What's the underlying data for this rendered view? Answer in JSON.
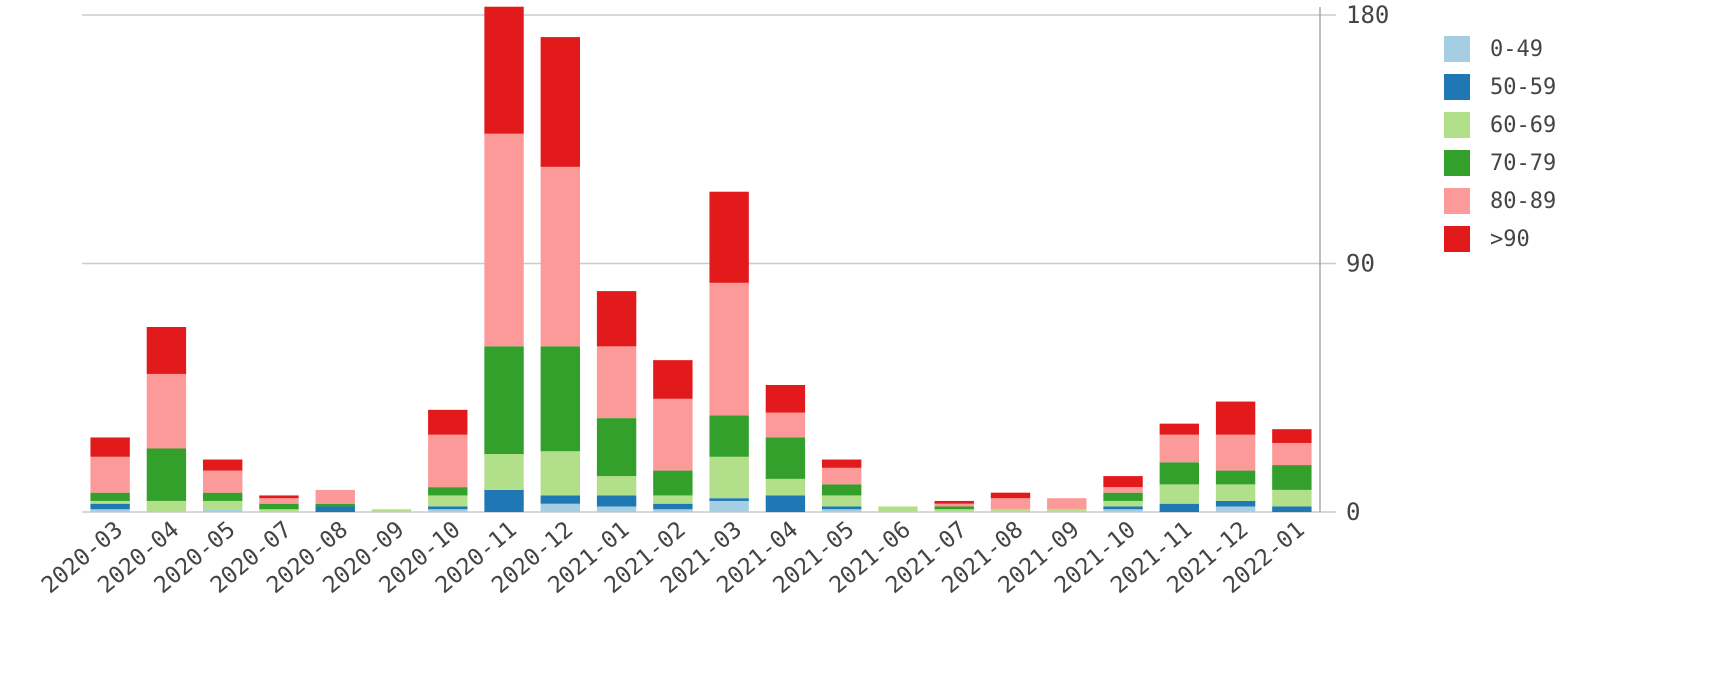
{
  "chart_data": {
    "type": "bar",
    "stacked": true,
    "title": "",
    "xlabel": "",
    "ylabel": "",
    "ylim": [
      0,
      180
    ],
    "y_ticks": [
      0,
      90,
      180
    ],
    "y_axis_position": "right",
    "grid": true,
    "legend_position": "right",
    "categories": [
      "2020-03",
      "2020-04",
      "2020-05",
      "2020-07",
      "2020-08",
      "2020-09",
      "2020-10",
      "2020-11",
      "2020-12",
      "2021-01",
      "2021-02",
      "2021-03",
      "2021-04",
      "2021-05",
      "2021-06",
      "2021-07",
      "2021-08",
      "2021-09",
      "2021-10",
      "2021-11",
      "2021-12",
      "2022-01"
    ],
    "series": [
      {
        "name": "0-49",
        "color": "#a6cee3",
        "values": [
          1,
          0,
          1,
          0,
          0,
          0,
          1,
          0,
          3,
          2,
          1,
          4,
          0,
          1,
          0,
          0,
          0,
          0,
          1,
          0,
          2,
          0
        ]
      },
      {
        "name": "50-59",
        "color": "#1f78b4",
        "values": [
          2,
          0,
          0,
          0,
          2,
          0,
          1,
          8,
          3,
          4,
          2,
          1,
          6,
          1,
          0,
          0,
          0,
          0,
          1,
          3,
          2,
          2
        ]
      },
      {
        "name": "60-69",
        "color": "#b2df8a",
        "values": [
          1,
          4,
          3,
          1,
          0,
          1,
          4,
          13,
          16,
          7,
          3,
          15,
          6,
          4,
          2,
          1,
          1,
          1,
          2,
          7,
          6,
          6
        ]
      },
      {
        "name": "70-79",
        "color": "#33a02c",
        "values": [
          3,
          19,
          3,
          2,
          1,
          0,
          3,
          39,
          38,
          21,
          9,
          15,
          15,
          4,
          0,
          1,
          0,
          0,
          3,
          8,
          5,
          9
        ]
      },
      {
        "name": "80-89",
        "color": "#fb9a99",
        "values": [
          13,
          27,
          8,
          2,
          5,
          0,
          19,
          77,
          65,
          26,
          26,
          48,
          9,
          6,
          0,
          1,
          4,
          4,
          2,
          10,
          13,
          8
        ]
      },
      {
        "name": ">90",
        "color": "#e31a1c",
        "values": [
          7,
          17,
          4,
          1,
          0,
          0,
          9,
          46,
          47,
          20,
          14,
          33,
          10,
          3,
          0,
          1,
          2,
          0,
          4,
          4,
          12,
          5
        ]
      }
    ]
  }
}
